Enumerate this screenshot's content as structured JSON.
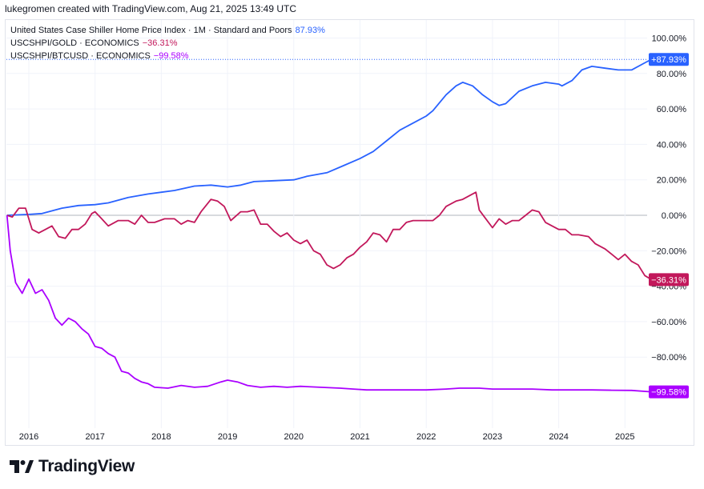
{
  "header": {
    "credit": "lukegromen created with TradingView.com, Aug 21, 2025 13:49 UTC"
  },
  "legend": [
    {
      "name": "United States Case Shiller Home Price Index · 1M · Standard and Poors",
      "value": "87.93%",
      "color": "#2962ff"
    },
    {
      "name": "USCSHPI/GOLD · ECONOMICS",
      "value": "−36.31%",
      "color": "#c2185b"
    },
    {
      "name": "USCSHPI/BTCUSD · ECONOMICS",
      "value": "−99.58%",
      "color": "#aa00ff"
    }
  ],
  "logo": {
    "text": "TradingView"
  },
  "colors": {
    "zero_line": "#b2b5be",
    "grid": "#f0f3fa",
    "axis_text": "#131722"
  },
  "chart_data": {
    "type": "line",
    "xlabel": "",
    "ylabel": "",
    "x_ticks": [
      "2016",
      "2017",
      "2018",
      "2019",
      "2020",
      "2021",
      "2022",
      "2023",
      "2024",
      "2025"
    ],
    "y_ticks": [
      "100.00%",
      "80.00%",
      "60.00%",
      "40.00%",
      "20.00%",
      "0.00%",
      "−20.00%",
      "−40.00%",
      "−60.00%",
      "−80.00%"
    ],
    "ylim": [
      -100,
      100
    ],
    "y_unit": "%",
    "xlim": [
      2015.67,
      2025.58
    ],
    "series": [
      {
        "name": "United States Case Shiller Home Price Index · 1M · Standard and Poors",
        "color": "#2962ff",
        "last_label": "+87.93%",
        "points": [
          [
            2015.67,
            0
          ],
          [
            2016.0,
            0.5
          ],
          [
            2016.2,
            1
          ],
          [
            2016.5,
            4
          ],
          [
            2016.75,
            5.5
          ],
          [
            2017.0,
            6
          ],
          [
            2017.2,
            7
          ],
          [
            2017.5,
            10
          ],
          [
            2017.8,
            12
          ],
          [
            2018.0,
            13
          ],
          [
            2018.2,
            14
          ],
          [
            2018.5,
            16.5
          ],
          [
            2018.75,
            17
          ],
          [
            2019.0,
            16
          ],
          [
            2019.2,
            17
          ],
          [
            2019.4,
            19
          ],
          [
            2019.7,
            19.5
          ],
          [
            2020.0,
            20
          ],
          [
            2020.2,
            22
          ],
          [
            2020.5,
            24
          ],
          [
            2020.75,
            28
          ],
          [
            2021.0,
            32
          ],
          [
            2021.2,
            36
          ],
          [
            2021.4,
            42
          ],
          [
            2021.6,
            48
          ],
          [
            2021.8,
            52
          ],
          [
            2022.0,
            56
          ],
          [
            2022.1,
            59
          ],
          [
            2022.3,
            68
          ],
          [
            2022.45,
            73
          ],
          [
            2022.55,
            75
          ],
          [
            2022.7,
            73
          ],
          [
            2022.85,
            68
          ],
          [
            2023.0,
            64
          ],
          [
            2023.1,
            62
          ],
          [
            2023.2,
            63
          ],
          [
            2023.4,
            70
          ],
          [
            2023.6,
            73
          ],
          [
            2023.8,
            75
          ],
          [
            2024.0,
            74
          ],
          [
            2024.05,
            73
          ],
          [
            2024.2,
            76
          ],
          [
            2024.35,
            82
          ],
          [
            2024.5,
            84
          ],
          [
            2024.7,
            83
          ],
          [
            2024.9,
            82
          ],
          [
            2025.1,
            82
          ],
          [
            2025.3,
            86
          ],
          [
            2025.4,
            87.93
          ]
        ]
      },
      {
        "name": "USCSHPI/GOLD · ECONOMICS",
        "color": "#c2185b",
        "last_label": "−36.31%",
        "points": [
          [
            2015.67,
            0
          ],
          [
            2015.75,
            -1
          ],
          [
            2015.85,
            4
          ],
          [
            2015.95,
            4
          ],
          [
            2016.05,
            -8
          ],
          [
            2016.15,
            -10
          ],
          [
            2016.25,
            -8
          ],
          [
            2016.35,
            -6
          ],
          [
            2016.45,
            -12
          ],
          [
            2016.55,
            -13
          ],
          [
            2016.65,
            -8
          ],
          [
            2016.75,
            -8
          ],
          [
            2016.85,
            -5
          ],
          [
            2016.95,
            1
          ],
          [
            2017.0,
            2
          ],
          [
            2017.1,
            -2
          ],
          [
            2017.2,
            -6
          ],
          [
            2017.35,
            -3
          ],
          [
            2017.5,
            -3
          ],
          [
            2017.6,
            -5
          ],
          [
            2017.7,
            0
          ],
          [
            2017.8,
            -4
          ],
          [
            2017.9,
            -4
          ],
          [
            2018.05,
            -2
          ],
          [
            2018.2,
            -2
          ],
          [
            2018.3,
            -5
          ],
          [
            2018.4,
            -3
          ],
          [
            2018.5,
            -4
          ],
          [
            2018.6,
            2
          ],
          [
            2018.75,
            9
          ],
          [
            2018.85,
            8
          ],
          [
            2018.95,
            5
          ],
          [
            2019.05,
            -3
          ],
          [
            2019.2,
            2
          ],
          [
            2019.3,
            2
          ],
          [
            2019.4,
            3
          ],
          [
            2019.5,
            -5
          ],
          [
            2019.6,
            -5
          ],
          [
            2019.7,
            -9
          ],
          [
            2019.8,
            -12
          ],
          [
            2019.9,
            -10
          ],
          [
            2020.0,
            -14
          ],
          [
            2020.1,
            -16
          ],
          [
            2020.2,
            -14
          ],
          [
            2020.3,
            -20
          ],
          [
            2020.4,
            -22
          ],
          [
            2020.5,
            -28
          ],
          [
            2020.6,
            -30
          ],
          [
            2020.7,
            -28
          ],
          [
            2020.8,
            -24
          ],
          [
            2020.9,
            -22
          ],
          [
            2021.0,
            -18
          ],
          [
            2021.1,
            -15
          ],
          [
            2021.2,
            -10
          ],
          [
            2021.3,
            -11
          ],
          [
            2021.4,
            -15
          ],
          [
            2021.5,
            -8
          ],
          [
            2021.6,
            -8
          ],
          [
            2021.7,
            -4
          ],
          [
            2021.8,
            -3
          ],
          [
            2021.9,
            -3
          ],
          [
            2022.0,
            -3
          ],
          [
            2022.1,
            -3
          ],
          [
            2022.2,
            0
          ],
          [
            2022.3,
            5
          ],
          [
            2022.45,
            8
          ],
          [
            2022.55,
            9
          ],
          [
            2022.65,
            11
          ],
          [
            2022.75,
            13
          ],
          [
            2022.8,
            3
          ],
          [
            2022.9,
            -2
          ],
          [
            2023.0,
            -7
          ],
          [
            2023.1,
            -2
          ],
          [
            2023.2,
            -5
          ],
          [
            2023.3,
            -3
          ],
          [
            2023.4,
            -3
          ],
          [
            2023.5,
            0
          ],
          [
            2023.6,
            3
          ],
          [
            2023.7,
            2
          ],
          [
            2023.8,
            -4
          ],
          [
            2023.9,
            -6
          ],
          [
            2024.0,
            -8
          ],
          [
            2024.1,
            -8
          ],
          [
            2024.2,
            -11
          ],
          [
            2024.3,
            -11
          ],
          [
            2024.45,
            -12
          ],
          [
            2024.55,
            -16
          ],
          [
            2024.7,
            -19
          ],
          [
            2024.8,
            -22
          ],
          [
            2024.9,
            -25
          ],
          [
            2025.0,
            -22
          ],
          [
            2025.1,
            -26
          ],
          [
            2025.2,
            -28
          ],
          [
            2025.3,
            -34
          ],
          [
            2025.4,
            -36.31
          ]
        ]
      },
      {
        "name": "USCSHPI/BTCUSD · ECONOMICS",
        "color": "#aa00ff",
        "last_label": "−99.58%",
        "points": [
          [
            2015.67,
            0
          ],
          [
            2015.72,
            -20
          ],
          [
            2015.8,
            -38
          ],
          [
            2015.9,
            -44
          ],
          [
            2016.0,
            -36
          ],
          [
            2016.1,
            -44
          ],
          [
            2016.2,
            -42
          ],
          [
            2016.3,
            -48
          ],
          [
            2016.4,
            -58
          ],
          [
            2016.5,
            -62
          ],
          [
            2016.6,
            -58
          ],
          [
            2016.7,
            -60
          ],
          [
            2016.8,
            -64
          ],
          [
            2016.9,
            -67
          ],
          [
            2017.0,
            -74
          ],
          [
            2017.1,
            -75
          ],
          [
            2017.2,
            -78
          ],
          [
            2017.3,
            -80
          ],
          [
            2017.4,
            -88
          ],
          [
            2017.5,
            -89
          ],
          [
            2017.6,
            -92
          ],
          [
            2017.7,
            -94
          ],
          [
            2017.8,
            -95
          ],
          [
            2017.9,
            -97
          ],
          [
            2018.1,
            -97.5
          ],
          [
            2018.3,
            -96
          ],
          [
            2018.5,
            -97
          ],
          [
            2018.7,
            -96.5
          ],
          [
            2018.9,
            -94
          ],
          [
            2019.0,
            -93
          ],
          [
            2019.15,
            -94
          ],
          [
            2019.3,
            -96
          ],
          [
            2019.5,
            -97
          ],
          [
            2019.7,
            -96.5
          ],
          [
            2019.9,
            -97
          ],
          [
            2020.1,
            -96.5
          ],
          [
            2020.4,
            -97
          ],
          [
            2020.7,
            -97.5
          ],
          [
            2020.9,
            -98
          ],
          [
            2021.1,
            -98.5
          ],
          [
            2021.4,
            -98.5
          ],
          [
            2021.7,
            -98.5
          ],
          [
            2022.0,
            -98.5
          ],
          [
            2022.3,
            -98
          ],
          [
            2022.5,
            -97.5
          ],
          [
            2022.8,
            -97.5
          ],
          [
            2023.0,
            -98
          ],
          [
            2023.3,
            -98
          ],
          [
            2023.6,
            -98
          ],
          [
            2023.9,
            -98.5
          ],
          [
            2024.2,
            -98.5
          ],
          [
            2024.5,
            -98.5
          ],
          [
            2024.8,
            -98.7
          ],
          [
            2025.1,
            -98.8
          ],
          [
            2025.4,
            -99.58
          ]
        ]
      }
    ]
  }
}
